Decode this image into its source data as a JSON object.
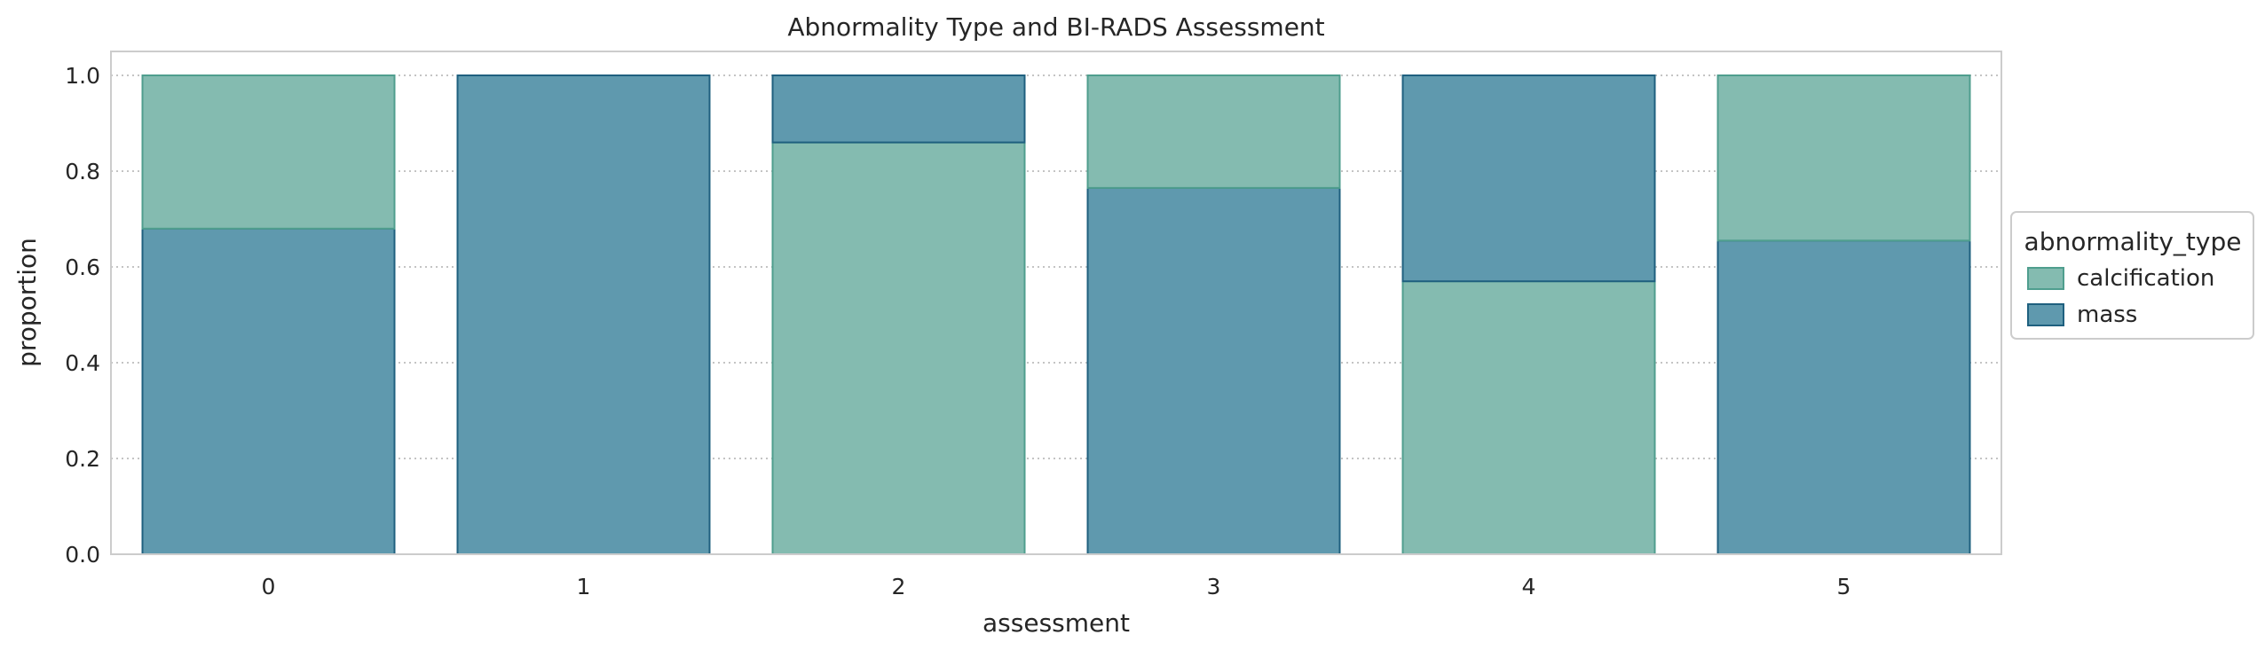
{
  "chart_data": {
    "type": "bar",
    "stacked": true,
    "title": "Abnormality Type and BI-RADS Assessment",
    "xlabel": "assessment",
    "ylabel": "proportion",
    "categories": [
      "0",
      "1",
      "2",
      "3",
      "4",
      "5"
    ],
    "ylim": [
      0,
      1.05
    ],
    "yticks": [
      "0.0",
      "0.2",
      "0.4",
      "0.6",
      "0.8",
      "1.0"
    ],
    "grid": "horizontal-dotted",
    "series": [
      {
        "name": "mass",
        "values": [
          0.68,
          1.0,
          0.14,
          0.765,
          0.43,
          0.655
        ],
        "stack_position": [
          0,
          0,
          1,
          0,
          1,
          0
        ]
      },
      {
        "name": "calcification",
        "values": [
          0.32,
          0.0,
          0.86,
          0.235,
          0.57,
          0.345
        ],
        "stack_position": [
          1,
          1,
          0,
          1,
          0,
          1
        ]
      }
    ],
    "colors": {
      "calcification": {
        "fill": "#84bbb0",
        "edge": "#4f9e8e"
      },
      "mass": {
        "fill": "#5f99ae",
        "edge": "#1f607f"
      }
    },
    "legend": {
      "title": "abnormality_type",
      "entries": [
        "calcification",
        "mass"
      ],
      "placement": "right-outside"
    }
  }
}
